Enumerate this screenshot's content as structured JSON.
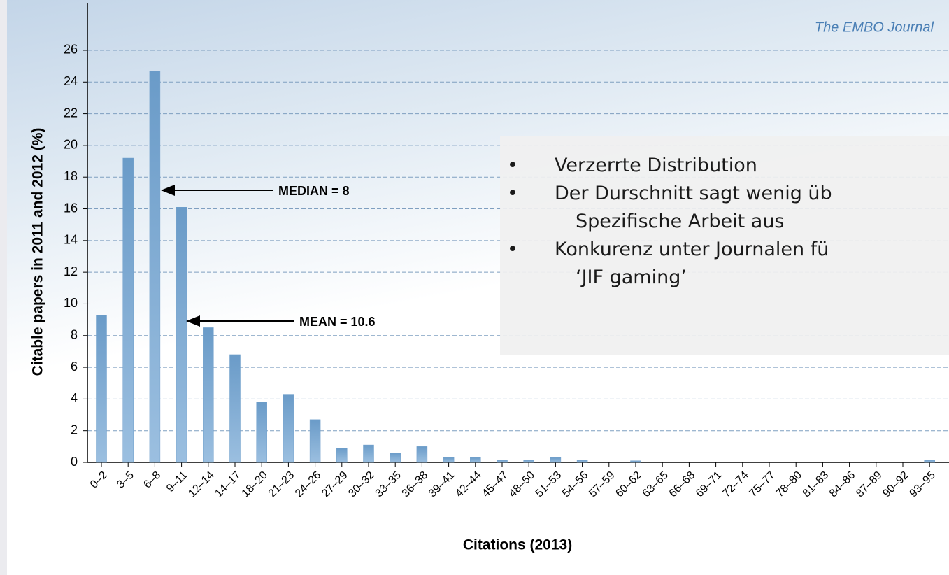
{
  "chart_data": {
    "type": "bar",
    "source": "The EMBO Journal",
    "ylabel": "Citable papers in 2011 and 2012  (%)",
    "xlabel": "Citations (2013)",
    "categories": [
      "0–2",
      "3–5",
      "6–8",
      "9–11",
      "12–14",
      "14–17",
      "18–20",
      "21–23",
      "24–26",
      "27–29",
      "30–32",
      "33–35",
      "36–38",
      "39–41",
      "42–44",
      "45–47",
      "48–50",
      "51–53",
      "54–56",
      "57–59",
      "60–62",
      "63–65",
      "66–68",
      "69–71",
      "72–74",
      "75–77",
      "78–80",
      "81–83",
      "84–86",
      "87–89",
      "90–92",
      "93–95"
    ],
    "values": [
      9.3,
      19.2,
      24.7,
      16.1,
      8.5,
      6.8,
      3.8,
      4.3,
      2.7,
      0.9,
      1.1,
      0.6,
      1.0,
      0.3,
      0.3,
      0.15,
      0.15,
      0.3,
      0.15,
      0,
      0.1,
      0,
      0,
      0,
      0,
      0,
      0,
      0,
      0,
      0,
      0,
      0.15
    ],
    "color": "#6f9fcb",
    "ylim": [
      0,
      29
    ],
    "yticks": [
      0,
      2,
      4,
      6,
      8,
      10,
      12,
      14,
      16,
      18,
      20,
      22,
      24,
      26
    ],
    "grid": true,
    "annotations": [
      "MEDIAN = 8",
      "MEAN = 10.6"
    ],
    "notes": [
      {
        "text": "Verzerrte Distribution"
      },
      {
        "text": "Der Durschnitt sagt wenig üb",
        "continuation": "Spezifische Arbeit aus"
      },
      {
        "text": "Konkurenz unter Journalen fü",
        "continuation": "‘JIF gaming’"
      }
    ]
  }
}
